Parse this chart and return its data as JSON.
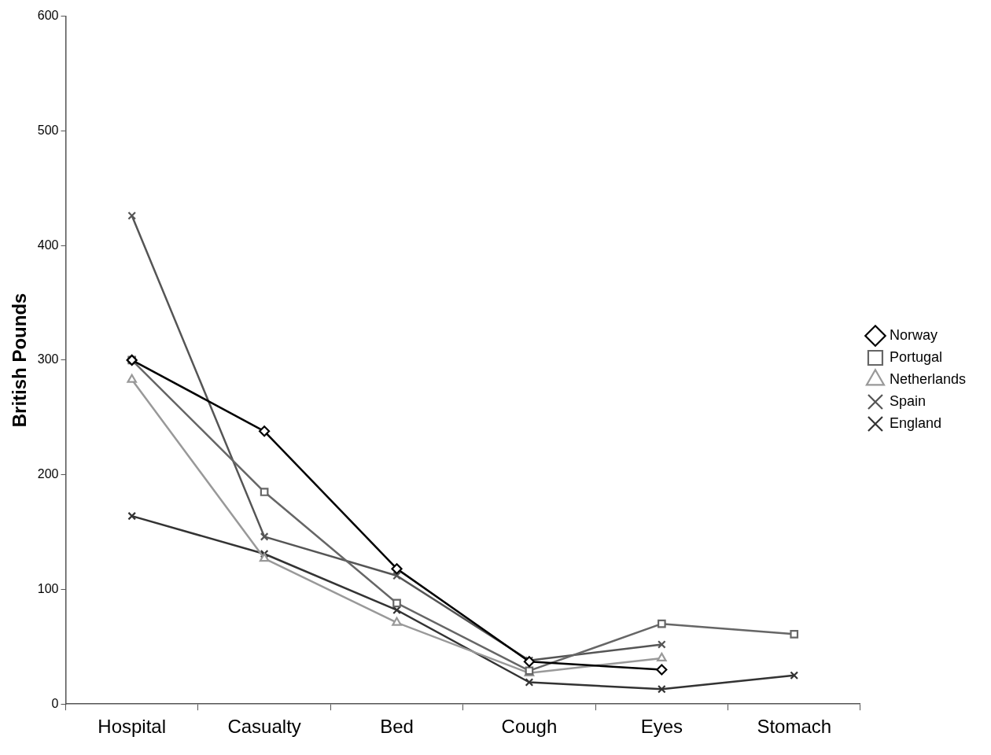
{
  "chart_data": {
    "type": "line",
    "ylabel": "British Pounds",
    "categories": [
      "Hospital",
      "Casualty",
      "Bed",
      "Cough",
      "Eyes",
      "Stomach"
    ],
    "ylim": [
      0,
      600
    ],
    "yticks": [
      0,
      100,
      200,
      300,
      400,
      500,
      600
    ],
    "grid": false,
    "legend": "right",
    "line_style": "solid",
    "series": [
      {
        "name": "Norway",
        "color": "#000000",
        "marker": "diamond",
        "values": [
          300,
          238,
          118,
          37,
          30,
          null
        ]
      },
      {
        "name": "Portugal",
        "color": "#666666",
        "marker": "square",
        "values": [
          300,
          185,
          88,
          29,
          70,
          61
        ]
      },
      {
        "name": "Netherlands",
        "color": "#999999",
        "marker": "triangle",
        "values": [
          283,
          127,
          71,
          27,
          40,
          null
        ]
      },
      {
        "name": "Spain",
        "color": "#555555",
        "marker": "cross",
        "values": [
          426,
          146,
          112,
          38,
          52,
          null
        ]
      },
      {
        "name": "England",
        "color": "#333333",
        "marker": "cross",
        "values": [
          164,
          131,
          82,
          19,
          13,
          25
        ]
      }
    ]
  }
}
